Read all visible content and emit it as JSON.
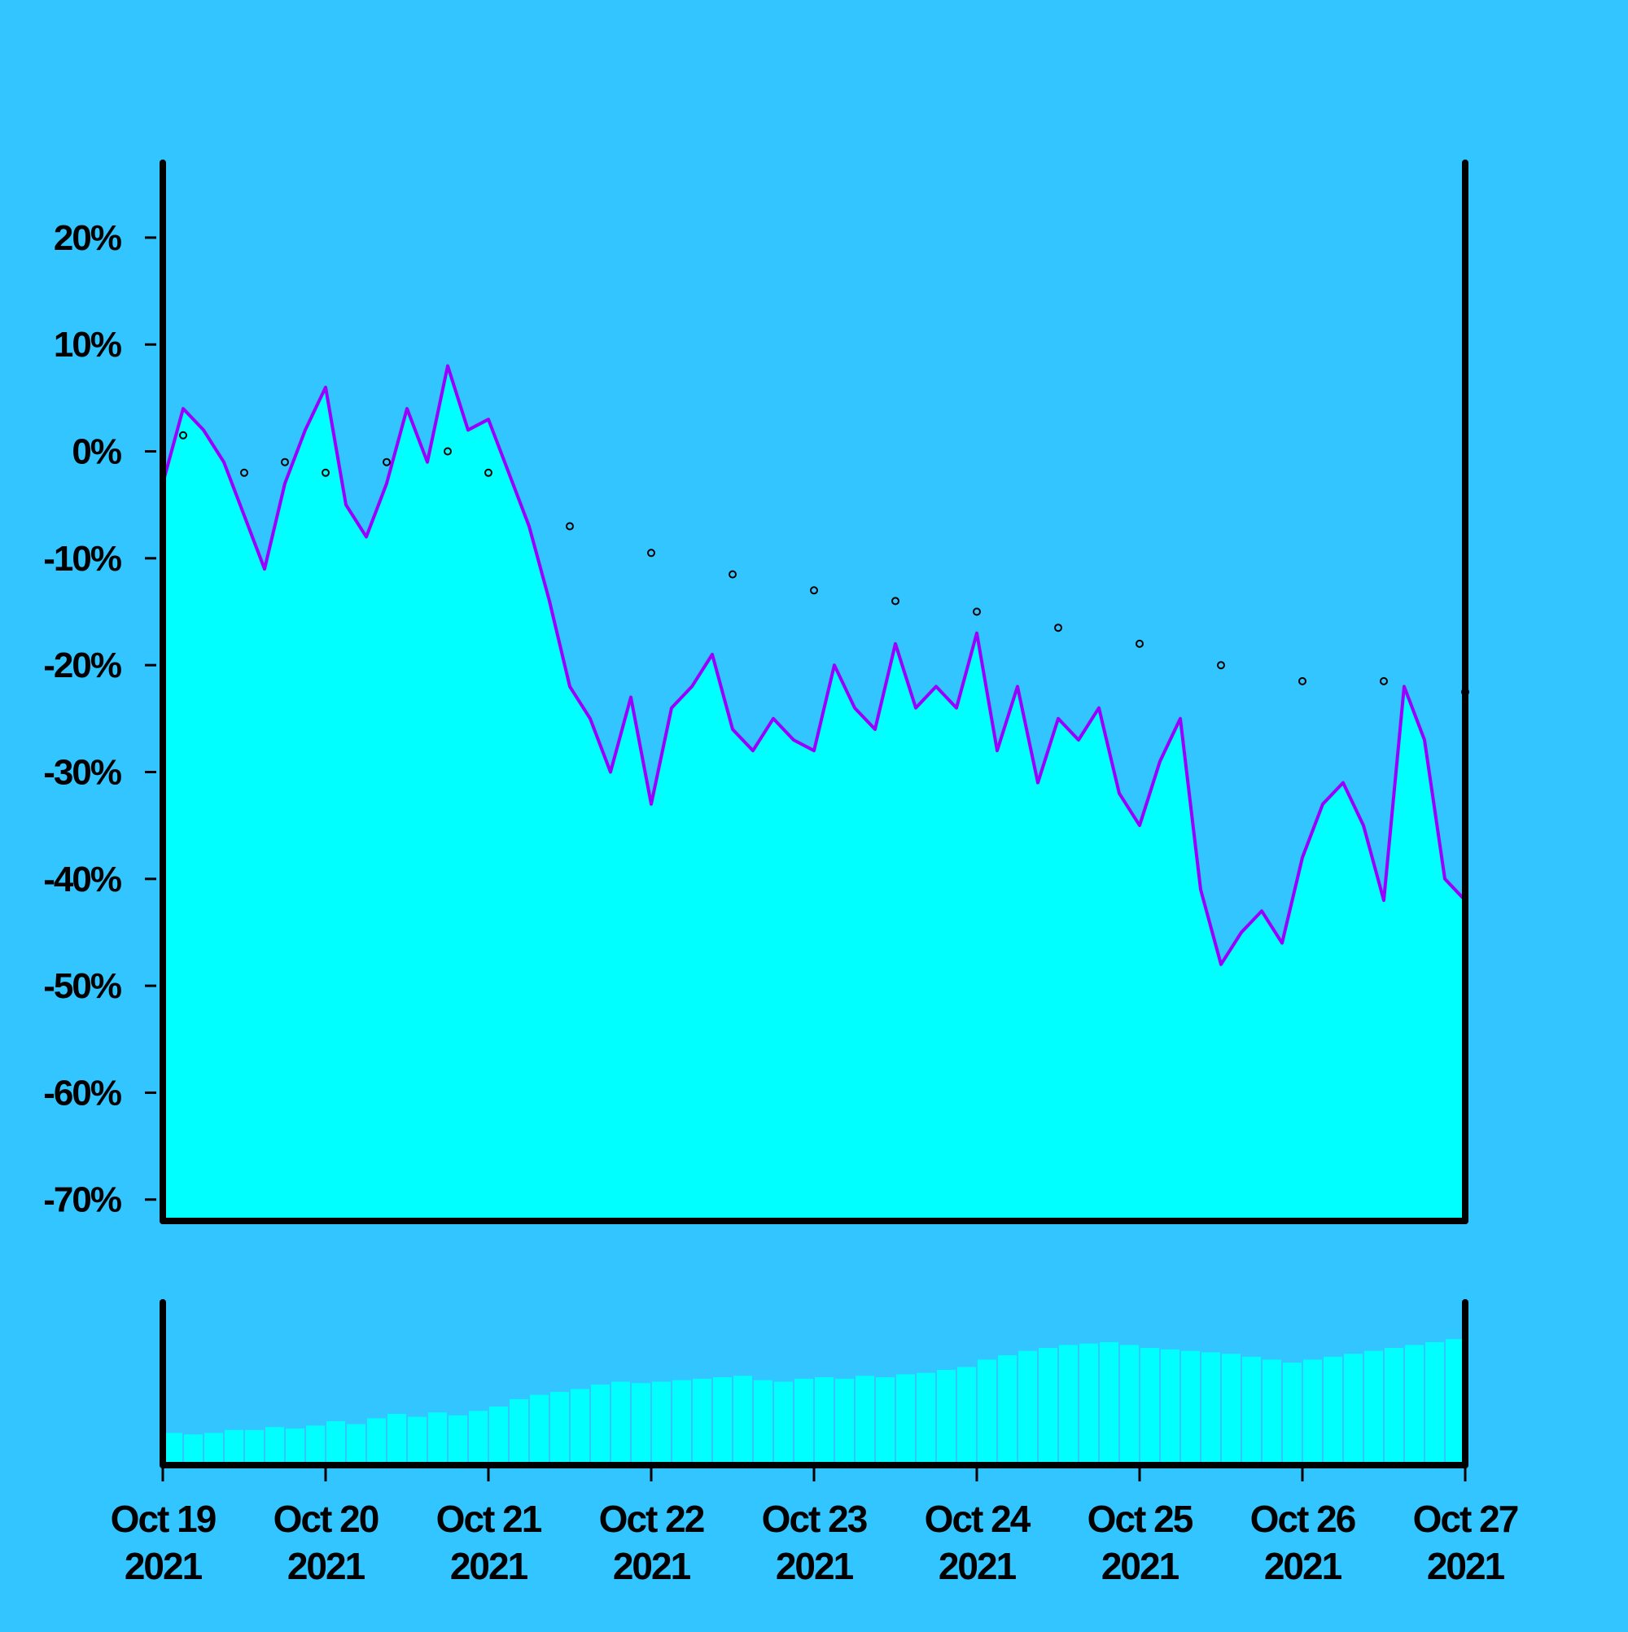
{
  "colors": {
    "background": "#33c5ff",
    "fill": "#00ffff",
    "line": "#9b00ff",
    "volume": "#00ffff",
    "frame": "#000000",
    "sma_dots": "#000000"
  },
  "chart_data": [
    {
      "type": "area",
      "panel": "price",
      "ylim": [
        -72,
        27
      ],
      "y_ticks": [
        20,
        10,
        0,
        -10,
        -20,
        -30,
        -40,
        -50,
        -60,
        -70
      ],
      "y_tick_labels": [
        "20%",
        "10%",
        "0%",
        "-10%",
        "-20%",
        "-30%",
        "-40%",
        "-50%",
        "-60%",
        "-70%"
      ],
      "xlim": [
        "2021-10-19",
        "2021-10-27"
      ],
      "x_ticks": [
        "2021-10-19",
        "2021-10-20",
        "2021-10-21",
        "2021-10-22",
        "2021-10-23",
        "2021-10-24",
        "2021-10-25",
        "2021-10-26",
        "2021-10-27"
      ],
      "x_tick_labels": [
        [
          "Oct 19",
          "2021"
        ],
        [
          "Oct 20",
          "2021"
        ],
        [
          "Oct 21",
          "2021"
        ],
        [
          "Oct 22",
          "2021"
        ],
        [
          "Oct 23",
          "2021"
        ],
        [
          "Oct 24",
          "2021"
        ],
        [
          "Oct 25",
          "2021"
        ],
        [
          "Oct 26",
          "2021"
        ],
        [
          "Oct 27",
          "2021"
        ]
      ],
      "grid": false,
      "series": [
        {
          "style": "line-with-area-fill",
          "x": [
            "2021-10-19 00:00",
            "2021-10-19 03:00",
            "2021-10-19 06:00",
            "2021-10-19 09:00",
            "2021-10-19 12:00",
            "2021-10-19 15:00",
            "2021-10-19 18:00",
            "2021-10-19 21:00",
            "2021-10-20 00:00",
            "2021-10-20 03:00",
            "2021-10-20 06:00",
            "2021-10-20 09:00",
            "2021-10-20 12:00",
            "2021-10-20 15:00",
            "2021-10-20 18:00",
            "2021-10-20 21:00",
            "2021-10-21 00:00",
            "2021-10-21 03:00",
            "2021-10-21 06:00",
            "2021-10-21 09:00",
            "2021-10-21 12:00",
            "2021-10-21 15:00",
            "2021-10-21 18:00",
            "2021-10-21 21:00",
            "2021-10-22 00:00",
            "2021-10-22 03:00",
            "2021-10-22 06:00",
            "2021-10-22 09:00",
            "2021-10-22 12:00",
            "2021-10-22 15:00",
            "2021-10-22 18:00",
            "2021-10-22 21:00",
            "2021-10-23 00:00",
            "2021-10-23 03:00",
            "2021-10-23 06:00",
            "2021-10-23 09:00",
            "2021-10-23 12:00",
            "2021-10-23 15:00",
            "2021-10-23 18:00",
            "2021-10-23 21:00",
            "2021-10-24 00:00",
            "2021-10-24 03:00",
            "2021-10-24 06:00",
            "2021-10-24 09:00",
            "2021-10-24 12:00",
            "2021-10-24 15:00",
            "2021-10-24 18:00",
            "2021-10-24 21:00",
            "2021-10-25 00:00",
            "2021-10-25 03:00",
            "2021-10-25 06:00",
            "2021-10-25 09:00",
            "2021-10-25 12:00",
            "2021-10-25 15:00",
            "2021-10-25 18:00",
            "2021-10-25 21:00",
            "2021-10-26 00:00",
            "2021-10-26 03:00",
            "2021-10-26 06:00",
            "2021-10-26 09:00",
            "2021-10-26 12:00",
            "2021-10-26 15:00",
            "2021-10-26 18:00",
            "2021-10-26 21:00",
            "2021-10-27 00:00"
          ],
          "values": [
            -3,
            4,
            2,
            -1,
            -6,
            -11,
            -3,
            2,
            6,
            -5,
            -8,
            -3,
            4,
            -1,
            8,
            2,
            3,
            -2,
            -7,
            -14,
            -22,
            -25,
            -30,
            -23,
            -33,
            -24,
            -22,
            -19,
            -26,
            -28,
            -25,
            -27,
            -28,
            -20,
            -24,
            -26,
            -18,
            -24,
            -22,
            -24,
            -17,
            -28,
            -22,
            -31,
            -25,
            -27,
            -24,
            -32,
            -35,
            -29,
            -25,
            -41,
            -48,
            -45,
            -43,
            -46,
            -38,
            -33,
            -31,
            -35,
            -42,
            -22,
            -27,
            -40,
            -42
          ]
        },
        {
          "style": "dotted-moving-average",
          "x": [
            "2021-10-19 03:00",
            "2021-10-19 12:00",
            "2021-10-19 18:00",
            "2021-10-20 00:00",
            "2021-10-20 09:00",
            "2021-10-20 18:00",
            "2021-10-21 00:00",
            "2021-10-21 12:00",
            "2021-10-22 00:00",
            "2021-10-22 12:00",
            "2021-10-23 00:00",
            "2021-10-23 12:00",
            "2021-10-24 00:00",
            "2021-10-24 12:00",
            "2021-10-25 00:00",
            "2021-10-25 12:00",
            "2021-10-26 00:00",
            "2021-10-26 12:00",
            "2021-10-27 00:00"
          ],
          "values": [
            1.5,
            -2,
            -1,
            -2,
            -1,
            0,
            -2,
            -7,
            -9.5,
            -11.5,
            -13,
            -14,
            -15,
            -16.5,
            -18,
            -20,
            -21.5,
            -21.5,
            -22.5
          ]
        }
      ]
    },
    {
      "type": "bar",
      "panel": "volume",
      "relative_heights": [
        0.22,
        0.21,
        0.22,
        0.24,
        0.24,
        0.26,
        0.25,
        0.27,
        0.3,
        0.28,
        0.32,
        0.35,
        0.33,
        0.36,
        0.34,
        0.37,
        0.4,
        0.45,
        0.48,
        0.5,
        0.52,
        0.55,
        0.57,
        0.56,
        0.57,
        0.58,
        0.59,
        0.6,
        0.61,
        0.58,
        0.57,
        0.59,
        0.6,
        0.59,
        0.61,
        0.6,
        0.62,
        0.63,
        0.65,
        0.67,
        0.72,
        0.75,
        0.78,
        0.8,
        0.82,
        0.83,
        0.84,
        0.82,
        0.8,
        0.79,
        0.78,
        0.77,
        0.76,
        0.74,
        0.72,
        0.7,
        0.72,
        0.74,
        0.76,
        0.78,
        0.8,
        0.82,
        0.84,
        0.86
      ]
    }
  ]
}
